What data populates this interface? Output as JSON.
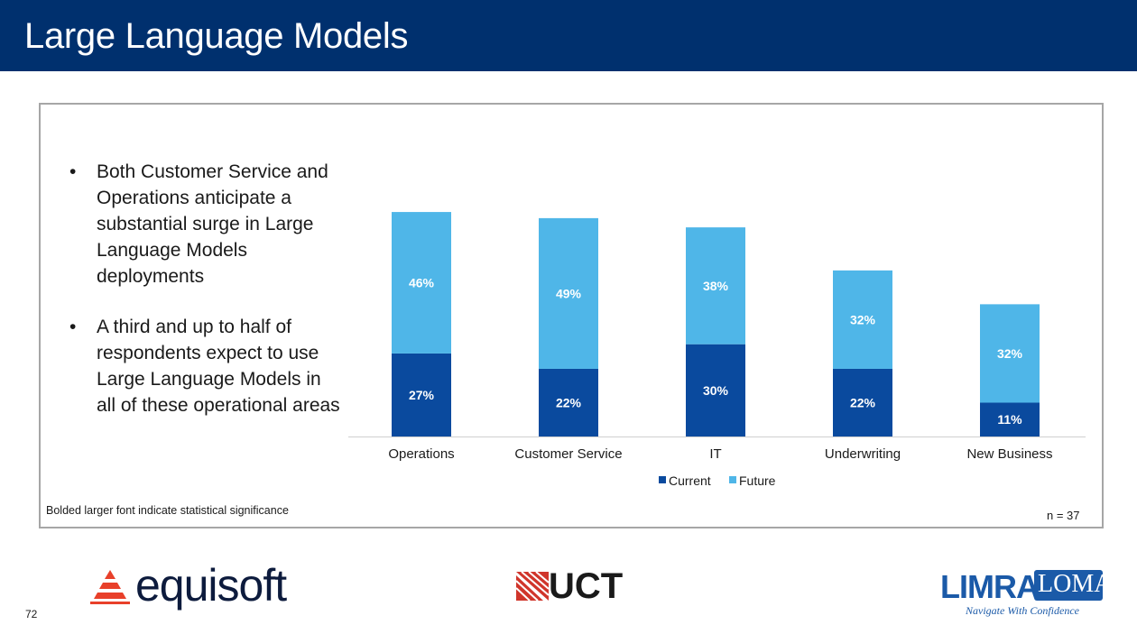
{
  "slide": {
    "title": "Large Language Models",
    "page_number": "72"
  },
  "bullets": [
    "Both Customer Service and Operations anticipate a substantial surge in Large Language Models deployments",
    "A third and up to half of respondents expect to use Large Language Models in all of these operational areas"
  ],
  "footnote": "Bolded larger font indicate statistical significance",
  "sample_size": "n = 37",
  "logos": {
    "equisoft": "equisoft",
    "uct": "UCT",
    "limra": "LIMRA",
    "loma": "LOMA",
    "limra_tagline": "Navigate With Confidence"
  },
  "colors": {
    "header": "#00306e",
    "current": "#0a4a9e",
    "future": "#4fb6e8"
  },
  "chart_data": {
    "type": "bar",
    "stacked": true,
    "categories": [
      "Operations",
      "Customer Service",
      "IT",
      "Underwriting",
      "New Business"
    ],
    "series": [
      {
        "name": "Current",
        "values": [
          27,
          22,
          30,
          22,
          11
        ],
        "labels": [
          "27%",
          "22%",
          "30%",
          "22%",
          "11%"
        ]
      },
      {
        "name": "Future",
        "values": [
          46,
          49,
          38,
          32,
          32
        ],
        "labels": [
          "46%",
          "49%",
          "38%",
          "32%",
          "32%"
        ]
      }
    ],
    "title": "",
    "xlabel": "",
    "ylabel": "",
    "ylim": [
      0,
      80
    ],
    "grid": false,
    "legend": "bottom"
  }
}
